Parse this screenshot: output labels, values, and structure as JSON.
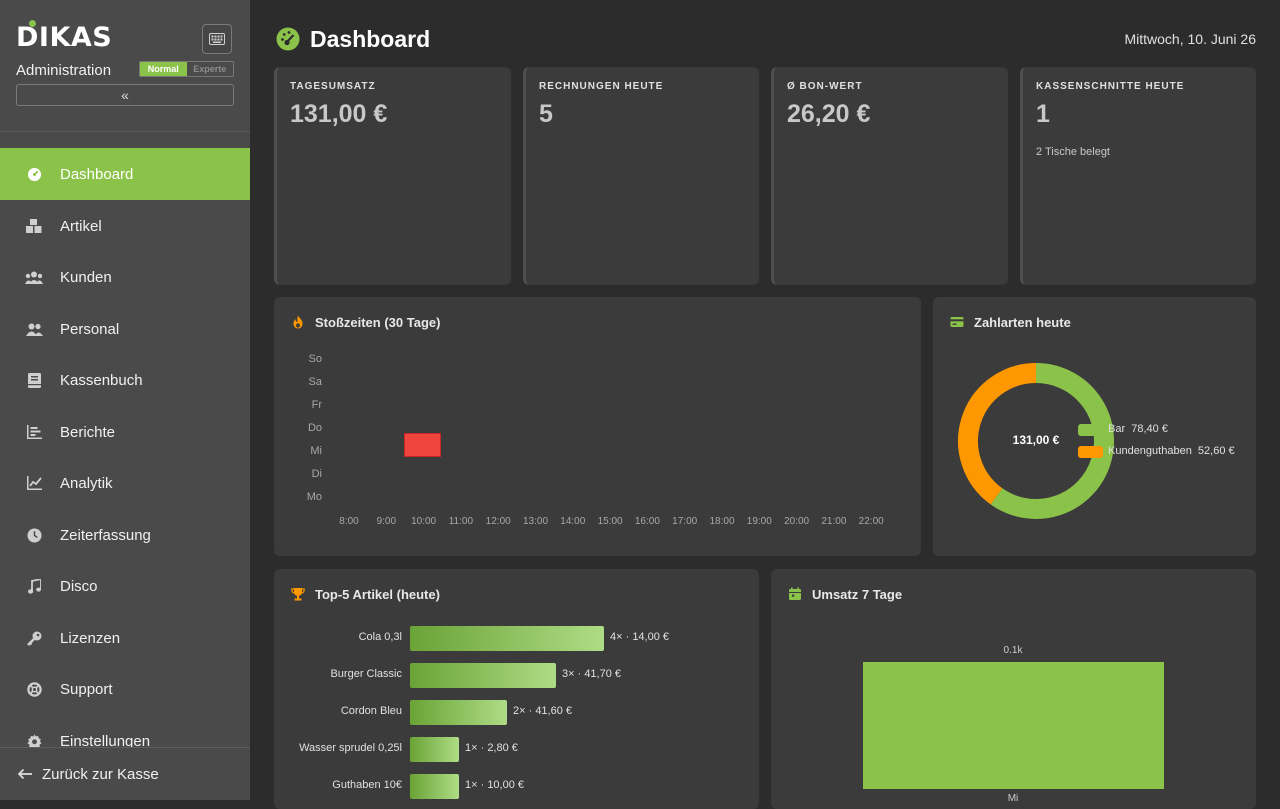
{
  "sidebar": {
    "logo": "DIKAS",
    "subtitle": "Administration",
    "keyboard_icon": "keyboard-icon",
    "mode_normal": "Normal",
    "mode_expert": "Experte",
    "collapse_glyph": "«",
    "items": [
      {
        "label": "Dashboard",
        "icon": "dashboard-icon",
        "active": true
      },
      {
        "label": "Artikel",
        "icon": "boxes-icon"
      },
      {
        "label": "Kunden",
        "icon": "users-icon"
      },
      {
        "label": "Personal",
        "icon": "staff-icon"
      },
      {
        "label": "Kassenbuch",
        "icon": "book-icon"
      },
      {
        "label": "Berichte",
        "icon": "bar-chart-icon"
      },
      {
        "label": "Analytik",
        "icon": "line-chart-icon"
      },
      {
        "label": "Zeiterfassung",
        "icon": "clock-icon"
      },
      {
        "label": "Disco",
        "icon": "music-icon"
      },
      {
        "label": "Lizenzen",
        "icon": "key-icon"
      },
      {
        "label": "Support",
        "icon": "lifebuoy-icon"
      },
      {
        "label": "Einstellungen",
        "icon": "gear-icon"
      }
    ],
    "back_label": "Zurück zur Kasse"
  },
  "header": {
    "title": "Dashboard",
    "date": "Mittwoch, 10. Juni 26"
  },
  "stats": [
    {
      "label": "TAGESUMSATZ",
      "value": "131,00 €",
      "sub": ""
    },
    {
      "label": "RECHNUNGEN HEUTE",
      "value": "5",
      "sub": ""
    },
    {
      "label": "Ø BON-WERT",
      "value": "26,20 €",
      "sub": ""
    },
    {
      "label": "KASSENSCHNITTE HEUTE",
      "value": "1",
      "sub": "2 Tische belegt"
    }
  ],
  "heatmap": {
    "title": "Stoßzeiten (30 Tage)",
    "days": [
      "So",
      "Sa",
      "Fr",
      "Do",
      "Mi",
      "Di",
      "Mo"
    ],
    "hours": [
      "8:00",
      "9:00",
      "10:00",
      "11:00",
      "12:00",
      "13:00",
      "14:00",
      "15:00",
      "16:00",
      "17:00",
      "18:00",
      "19:00",
      "20:00",
      "21:00",
      "22:00"
    ],
    "active_cells": [
      {
        "day": "Mi",
        "hour": "10:00"
      }
    ],
    "cell_color": "#f0453d"
  },
  "payments": {
    "title": "Zahlarten heute",
    "total": "131,00 €",
    "items": [
      {
        "label": "Bar",
        "amount": "78,40 €",
        "value": 78.4,
        "color": "#8bc34a"
      },
      {
        "label": "Kundenguthaben",
        "amount": "52,60 €",
        "value": 52.6,
        "color": "#ff9800"
      }
    ]
  },
  "top5": {
    "title": "Top-5 Artikel (heute)",
    "items": [
      {
        "name": "Cola 0,3l",
        "qty": 4,
        "revenue": 14.0,
        "text": "4× · 14,00 €"
      },
      {
        "name": "Burger Classic",
        "qty": 3,
        "revenue": 41.7,
        "text": "3× · 41,70 €"
      },
      {
        "name": "Cordon Bleu",
        "qty": 2,
        "revenue": 41.6,
        "text": "2× · 41,60 €"
      },
      {
        "name": "Wasser sprudel 0,25l",
        "qty": 1,
        "revenue": 2.8,
        "text": "1× · 2,80 €"
      },
      {
        "name": "Guthaben 10€",
        "qty": 1,
        "revenue": 10.0,
        "text": "1× · 10,00 €"
      }
    ]
  },
  "week": {
    "title": "Umsatz 7 Tage",
    "bar_label": "0.1k",
    "category": "Mi",
    "value": 131.0
  },
  "chart_data": [
    {
      "type": "heatmap",
      "title": "Stoßzeiten (30 Tage)",
      "x": [
        "8:00",
        "9:00",
        "10:00",
        "11:00",
        "12:00",
        "13:00",
        "14:00",
        "15:00",
        "16:00",
        "17:00",
        "18:00",
        "19:00",
        "20:00",
        "21:00",
        "22:00"
      ],
      "y": [
        "So",
        "Sa",
        "Fr",
        "Do",
        "Mi",
        "Di",
        "Mo"
      ],
      "cells": [
        {
          "x": "10:00",
          "y": "Mi",
          "value": 1
        }
      ]
    },
    {
      "type": "pie",
      "title": "Zahlarten heute",
      "categories": [
        "Bar",
        "Kundenguthaben"
      ],
      "values": [
        78.4,
        52.6
      ],
      "legend": "right"
    },
    {
      "type": "bar",
      "title": "Top-5 Artikel (heute)",
      "categories": [
        "Cola 0,3l",
        "Burger Classic",
        "Cordon Bleu",
        "Wasser sprudel 0,25l",
        "Guthaben 10€"
      ],
      "values": [
        14.0,
        41.7,
        41.6,
        2.8,
        10.0
      ]
    },
    {
      "type": "bar",
      "title": "Umsatz 7 Tage",
      "categories": [
        "Mi"
      ],
      "values": [
        131.0
      ]
    }
  ]
}
